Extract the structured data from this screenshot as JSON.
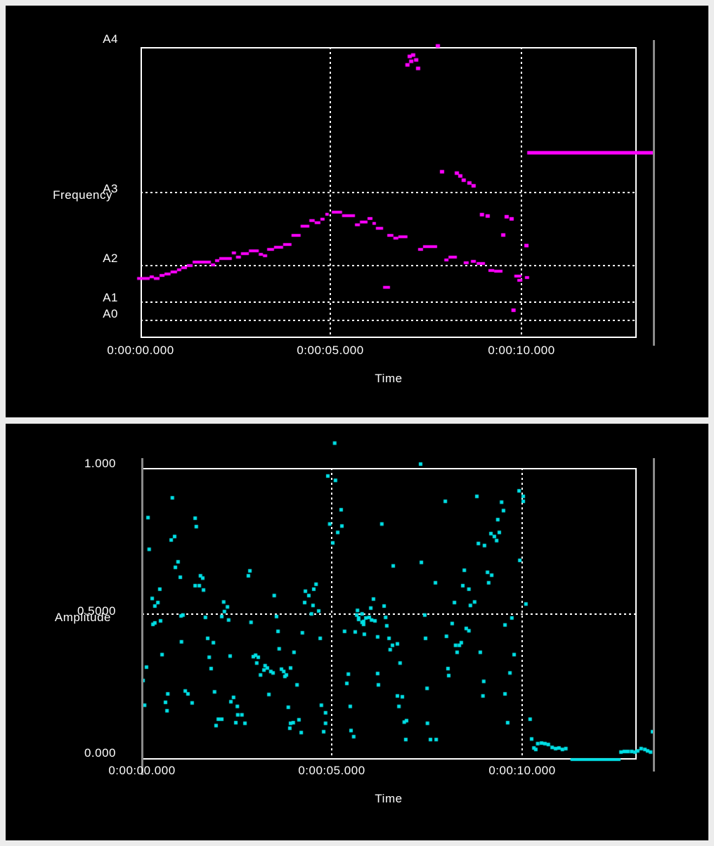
{
  "app": {
    "description_colors": {
      "panel_background": "#000000",
      "page_background": "#ececec",
      "grid_and_text": "#ffffff",
      "cursor_gray": "#8a8a8a",
      "pitch_series": "#ff00ff",
      "amplitude_series": "#00e0e6"
    }
  },
  "chart_data": [
    {
      "id": "frequency-track",
      "type": "scatter",
      "ylabel": "Frequency",
      "xlabel": "Time",
      "color": "#ff00ff",
      "y_axis": "linear frequency, 0 Hz at bottom axis, A4 (440 Hz) at top border",
      "ylim_hz": [
        0,
        440
      ],
      "x_range_seconds": [
        0,
        13.05
      ],
      "cursor_time_s": 13.48,
      "y_ticks": [
        {
          "label": "A4",
          "freq_hz": 440
        },
        {
          "label": "A3",
          "freq_hz": 220
        },
        {
          "label": "A2",
          "freq_hz": 110
        },
        {
          "label": "A1",
          "freq_hz": 55
        },
        {
          "label": "A0",
          "freq_hz": 27.5
        }
      ],
      "x_ticks": [
        {
          "label": "0:00:00.000",
          "t": 0
        },
        {
          "label": "0:00:05.000",
          "t": 5
        },
        {
          "label": "0:00:10.000",
          "t": 10
        }
      ],
      "segments_t0_t1_hz": [
        [
          -0.09,
          0.24,
          90
        ],
        [
          0.24,
          0.35,
          92.5
        ],
        [
          0.35,
          0.5,
          90
        ],
        [
          0.5,
          0.63,
          94.6
        ],
        [
          0.63,
          0.79,
          96.8
        ],
        [
          0.79,
          0.96,
          99.9
        ],
        [
          0.96,
          1.07,
          103.1
        ],
        [
          1.07,
          1.22,
          106.3
        ],
        [
          1.22,
          1.37,
          109.5
        ],
        [
          1.37,
          1.85,
          114.8
        ],
        [
          1.85,
          1.96,
          110.6
        ],
        [
          1.96,
          2.07,
          117
        ],
        [
          2.07,
          2.4,
          120.2
        ],
        [
          2.4,
          2.51,
          128.7
        ],
        [
          2.51,
          2.64,
          122.3
        ],
        [
          2.64,
          2.85,
          127.6
        ],
        [
          2.85,
          3.11,
          131.8
        ],
        [
          3.11,
          3.22,
          126.5
        ],
        [
          3.22,
          3.33,
          124.4
        ],
        [
          3.33,
          3.51,
          134
        ],
        [
          3.51,
          3.75,
          137.2
        ],
        [
          3.75,
          3.97,
          141.4
        ],
        [
          3.97,
          4.21,
          155.2
        ],
        [
          4.21,
          4.44,
          169.1
        ],
        [
          4.44,
          4.58,
          177.6
        ],
        [
          4.58,
          4.73,
          174.4
        ],
        [
          4.73,
          4.84,
          179.7
        ],
        [
          4.86,
          4.95,
          187.1
        ],
        [
          5.03,
          5.3,
          190.3
        ],
        [
          5.3,
          5.64,
          185
        ],
        [
          5.64,
          5.77,
          171.2
        ],
        [
          5.77,
          5.97,
          175.4
        ],
        [
          5.97,
          6.1,
          180.7
        ],
        [
          6.1,
          6.19,
          173.3
        ],
        [
          6.19,
          6.38,
          165.9
        ],
        [
          6.38,
          6.56,
          76.6
        ],
        [
          6.49,
          6.65,
          155.2
        ],
        [
          6.65,
          6.78,
          151
        ],
        [
          6.78,
          7.02,
          153.1
        ],
        [
          7.3,
          7.43,
          134
        ],
        [
          7.43,
          7.8,
          138.2
        ],
        [
          7.99,
          8.1,
          118
        ],
        [
          8.1,
          8.32,
          122.3
        ],
        [
          8.5,
          8.63,
          113.8
        ],
        [
          8.69,
          8.82,
          115.9
        ],
        [
          8.84,
          9.06,
          112.7
        ],
        [
          9.15,
          9.3,
          102.1
        ],
        [
          9.3,
          9.52,
          101
        ],
        [
          9.83,
          10.02,
          93.6
        ],
        [
          9.91,
          10.04,
          87.2
        ],
        [
          10.11,
          10.22,
          91.4
        ]
      ],
      "sustain_t0_t1_hz": [
        10.17,
        13.49,
        280.7
      ],
      "dots_t_hz": [
        [
          7.08,
          426.4
        ],
        [
          7.17,
          428.5
        ],
        [
          7.12,
          419
        ],
        [
          7.25,
          421.1
        ],
        [
          7.02,
          413.6
        ],
        [
          7.3,
          408.3
        ],
        [
          7.82,
          442.3
        ],
        [
          7.93,
          252
        ],
        [
          8.32,
          249.9
        ],
        [
          8.41,
          245.6
        ],
        [
          8.5,
          239.2
        ],
        [
          8.65,
          235
        ],
        [
          8.76,
          230.7
        ],
        [
          8.98,
          187.1
        ],
        [
          9.13,
          185
        ],
        [
          9.63,
          183.9
        ],
        [
          9.76,
          180.7
        ],
        [
          9.54,
          156.3
        ],
        [
          10.15,
          140.3
        ],
        [
          9.81,
          42.5
        ]
      ]
    },
    {
      "id": "amplitude-track",
      "type": "scatter",
      "ylabel": "Amplitude",
      "xlabel": "Time",
      "color": "#00e0e6",
      "ylim": [
        0,
        1
      ],
      "x_range_seconds": [
        0,
        13.05
      ],
      "cursor_times_s": [
        0,
        13.44
      ],
      "y_ticks": [
        {
          "label": "1.000",
          "value": 1.0
        },
        {
          "label": "0.5000",
          "value": 0.5
        },
        {
          "label": "0.000",
          "value": 0.0
        }
      ],
      "x_ticks": [
        {
          "label": "0:00:00.000",
          "t": 0
        },
        {
          "label": "0:00:05.000",
          "t": 5
        },
        {
          "label": "0:00:10.000",
          "t": 10
        }
      ],
      "points_t_amp": [
        [
          5.06,
          1.089
        ],
        [
          7.32,
          1.017
        ],
        [
          0.79,
          0.901
        ],
        [
          0.15,
          0.833
        ],
        [
          1.39,
          0.831
        ],
        [
          1.42,
          0.802
        ],
        [
          0.85,
          0.768
        ],
        [
          0.76,
          0.756
        ],
        [
          0.18,
          0.724
        ],
        [
          0.94,
          0.681
        ],
        [
          0.87,
          0.662
        ],
        [
          1.0,
          0.628
        ],
        [
          1.53,
          0.633
        ],
        [
          1.59,
          0.625
        ],
        [
          1.39,
          0.599
        ],
        [
          1.5,
          0.599
        ],
        [
          1.61,
          0.584
        ],
        [
          0.46,
          0.587
        ],
        [
          0.26,
          0.555
        ],
        [
          0.41,
          0.541
        ],
        [
          0.33,
          0.529
        ],
        [
          2.83,
          0.65
        ],
        [
          2.79,
          0.633
        ],
        [
          3.47,
          0.565
        ],
        [
          2.14,
          0.543
        ],
        [
          2.24,
          0.526
        ],
        [
          2.16,
          0.51
        ],
        [
          1.07,
          0.498
        ],
        [
          2.09,
          0.493
        ],
        [
          4.88,
          0.976
        ],
        [
          5.08,
          0.961
        ],
        [
          5.23,
          0.86
        ],
        [
          4.93,
          0.811
        ],
        [
          5.25,
          0.804
        ],
        [
          6.3,
          0.811
        ],
        [
          5.14,
          0.782
        ],
        [
          5.01,
          0.746
        ],
        [
          6.6,
          0.667
        ],
        [
          7.34,
          0.679
        ],
        [
          4.57,
          0.604
        ],
        [
          4.51,
          0.587
        ],
        [
          4.29,
          0.58
        ],
        [
          4.38,
          0.565
        ],
        [
          4.27,
          0.541
        ],
        [
          4.49,
          0.531
        ],
        [
          4.64,
          0.512
        ],
        [
          4.45,
          0.502
        ],
        [
          5.66,
          0.514
        ],
        [
          6.08,
          0.553
        ],
        [
          6.01,
          0.522
        ],
        [
          6.36,
          0.529
        ],
        [
          5.64,
          0.498
        ],
        [
          5.78,
          0.502
        ],
        [
          5.69,
          0.488
        ],
        [
          5.82,
          0.476
        ],
        [
          5.97,
          0.49
        ],
        [
          6.12,
          0.478
        ],
        [
          6.4,
          0.49
        ],
        [
          7.43,
          0.498
        ],
        [
          9.91,
          0.925
        ],
        [
          10.02,
          0.906
        ],
        [
          10.02,
          0.889
        ],
        [
          8.8,
          0.906
        ],
        [
          7.97,
          0.889
        ],
        [
          9.45,
          0.886
        ],
        [
          9.5,
          0.857
        ],
        [
          9.35,
          0.826
        ],
        [
          9.39,
          0.782
        ],
        [
          9.17,
          0.778
        ],
        [
          9.26,
          0.768
        ],
        [
          9.32,
          0.754
        ],
        [
          8.84,
          0.744
        ],
        [
          9.0,
          0.737
        ],
        [
          9.93,
          0.686
        ],
        [
          8.47,
          0.652
        ],
        [
          9.08,
          0.645
        ],
        [
          9.19,
          0.635
        ],
        [
          7.71,
          0.609
        ],
        [
          8.43,
          0.599
        ],
        [
          9.11,
          0.609
        ],
        [
          8.59,
          0.587
        ],
        [
          8.21,
          0.541
        ],
        [
          8.63,
          0.531
        ],
        [
          8.74,
          0.543
        ],
        [
          10.09,
          0.536
        ],
        [
          0.28,
          0.466
        ],
        [
          0.33,
          0.471
        ],
        [
          0.48,
          0.478
        ],
        [
          1.02,
          0.495
        ],
        [
          1.66,
          0.49
        ],
        [
          2.27,
          0.481
        ],
        [
          2.86,
          0.473
        ],
        [
          3.53,
          0.493
        ],
        [
          3.57,
          0.442
        ],
        [
          4.21,
          0.437
        ],
        [
          4.68,
          0.418
        ],
        [
          1.72,
          0.418
        ],
        [
          1.87,
          0.403
        ],
        [
          1.03,
          0.406
        ],
        [
          0.52,
          0.362
        ],
        [
          3.6,
          0.382
        ],
        [
          3.99,
          0.37
        ],
        [
          1.76,
          0.353
        ],
        [
          2.31,
          0.357
        ],
        [
          2.92,
          0.355
        ],
        [
          2.98,
          0.36
        ],
        [
          3.05,
          0.353
        ],
        [
          3.01,
          0.333
        ],
        [
          0.11,
          0.319
        ],
        [
          1.81,
          0.314
        ],
        [
          3.23,
          0.324
        ],
        [
          3.29,
          0.316
        ],
        [
          3.2,
          0.309
        ],
        [
          3.11,
          0.292
        ],
        [
          3.38,
          0.304
        ],
        [
          3.44,
          0.299
        ],
        [
          3.66,
          0.312
        ],
        [
          3.72,
          0.304
        ],
        [
          3.79,
          0.292
        ],
        [
          3.75,
          0.287
        ],
        [
          3.9,
          0.316
        ],
        [
          0.02,
          0.273
        ],
        [
          4.07,
          0.258
        ],
        [
          0.67,
          0.227
        ],
        [
          1.13,
          0.237
        ],
        [
          1.2,
          0.227
        ],
        [
          1.9,
          0.234
        ],
        [
          3.33,
          0.225
        ],
        [
          2.4,
          0.215
        ],
        [
          2.33,
          0.2
        ],
        [
          0.61,
          0.198
        ],
        [
          0.06,
          0.188
        ],
        [
          0.65,
          0.169
        ],
        [
          1.31,
          0.196
        ],
        [
          2.5,
          0.184
        ],
        [
          2.51,
          0.155
        ],
        [
          2.62,
          0.155
        ],
        [
          2.0,
          0.14
        ],
        [
          2.09,
          0.14
        ],
        [
          2.46,
          0.128
        ],
        [
          2.7,
          0.126
        ],
        [
          1.94,
          0.118
        ],
        [
          3.84,
          0.181
        ],
        [
          4.71,
          0.188
        ],
        [
          4.82,
          0.162
        ],
        [
          3.9,
          0.126
        ],
        [
          3.97,
          0.128
        ],
        [
          4.12,
          0.138
        ],
        [
          3.88,
          0.109
        ],
        [
          4.18,
          0.094
        ],
        [
          4.82,
          0.126
        ],
        [
          4.77,
          0.097
        ],
        [
          5.69,
          0.483
        ],
        [
          5.78,
          0.473
        ],
        [
          5.88,
          0.488
        ],
        [
          6.03,
          0.481
        ],
        [
          5.82,
          0.466
        ],
        [
          5.32,
          0.442
        ],
        [
          5.6,
          0.44
        ],
        [
          5.84,
          0.432
        ],
        [
          6.19,
          0.423
        ],
        [
          6.43,
          0.461
        ],
        [
          6.49,
          0.418
        ],
        [
          6.58,
          0.394
        ],
        [
          6.52,
          0.379
        ],
        [
          6.71,
          0.399
        ],
        [
          6.78,
          0.333
        ],
        [
          7.45,
          0.418
        ],
        [
          8.0,
          0.425
        ],
        [
          8.15,
          0.469
        ],
        [
          8.52,
          0.452
        ],
        [
          8.59,
          0.444
        ],
        [
          8.24,
          0.394
        ],
        [
          8.34,
          0.394
        ],
        [
          8.39,
          0.403
        ],
        [
          8.28,
          0.37
        ],
        [
          8.89,
          0.37
        ],
        [
          9.78,
          0.362
        ],
        [
          9.54,
          0.464
        ],
        [
          9.72,
          0.488
        ],
        [
          8.04,
          0.314
        ],
        [
          8.06,
          0.29
        ],
        [
          5.42,
          0.295
        ],
        [
          5.38,
          0.263
        ],
        [
          6.19,
          0.297
        ],
        [
          6.21,
          0.258
        ],
        [
          5.47,
          0.184
        ],
        [
          6.75,
          0.184
        ],
        [
          6.71,
          0.22
        ],
        [
          6.84,
          0.217
        ],
        [
          7.49,
          0.246
        ],
        [
          8.96,
          0.22
        ],
        [
          9.54,
          0.227
        ],
        [
          9.67,
          0.299
        ],
        [
          8.98,
          0.27
        ],
        [
          6.89,
          0.13
        ],
        [
          6.95,
          0.135
        ],
        [
          7.5,
          0.126
        ],
        [
          9.61,
          0.128
        ],
        [
          5.49,
          0.101
        ],
        [
          5.56,
          0.08
        ],
        [
          6.93,
          0.07
        ],
        [
          7.58,
          0.07
        ],
        [
          7.73,
          0.07
        ],
        [
          10.2,
          0.14
        ],
        [
          10.24,
          0.072
        ],
        [
          10.3,
          0.041
        ],
        [
          10.35,
          0.036
        ],
        [
          10.4,
          0.056
        ],
        [
          10.5,
          0.058
        ],
        [
          10.59,
          0.056
        ],
        [
          10.68,
          0.053
        ],
        [
          10.78,
          0.043
        ],
        [
          10.87,
          0.039
        ],
        [
          10.96,
          0.041
        ],
        [
          11.05,
          0.036
        ],
        [
          11.14,
          0.039
        ],
        [
          13.42,
          0.097
        ],
        [
          12.59,
          0.027
        ],
        [
          12.68,
          0.029
        ],
        [
          12.77,
          0.029
        ],
        [
          12.87,
          0.029
        ],
        [
          12.96,
          0.027
        ],
        [
          13.03,
          0.031
        ],
        [
          13.12,
          0.039
        ],
        [
          13.22,
          0.036
        ],
        [
          13.29,
          0.031
        ],
        [
          13.37,
          0.027
        ]
      ],
      "runs_t0_t1_amp": [
        [
          11.27,
          12.59,
          0.0
        ]
      ]
    }
  ]
}
